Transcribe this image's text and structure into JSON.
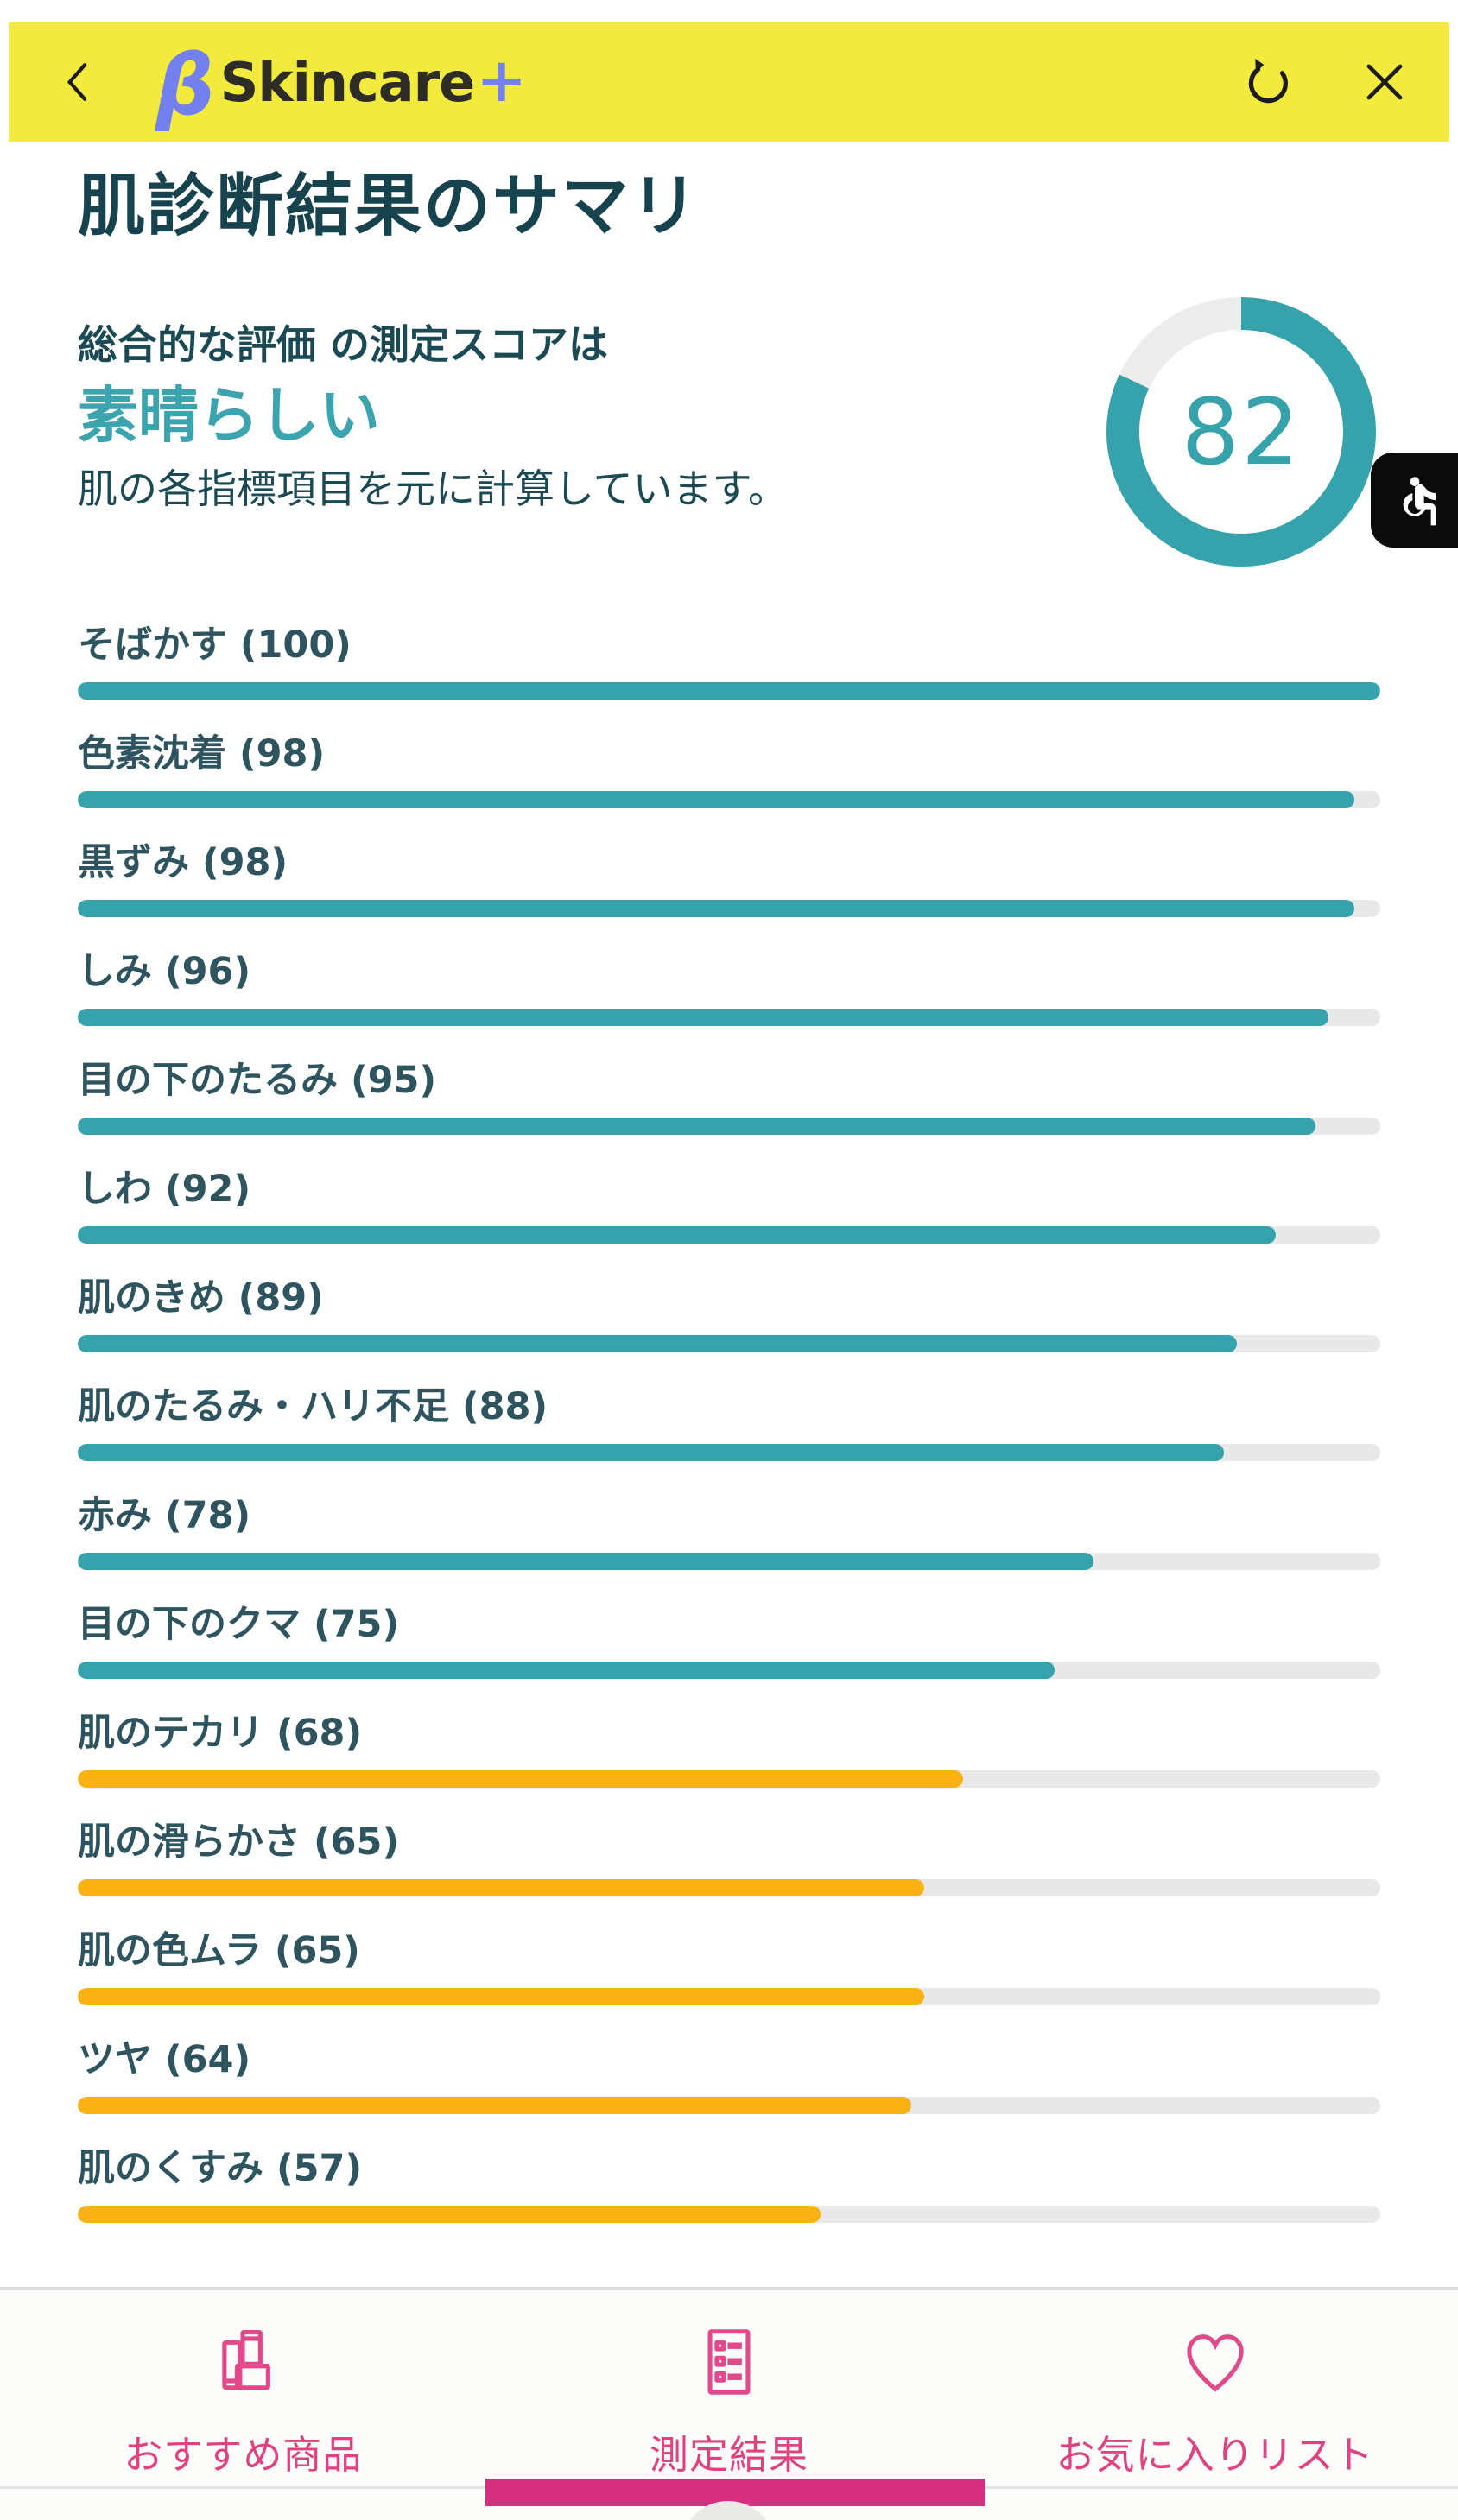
{
  "header": {
    "logo_beta": "β",
    "logo_name": "Skincare",
    "logo_plus": "+"
  },
  "page": {
    "title": "肌診断結果のサマリ"
  },
  "summary": {
    "line1": "総合的な評価 の測定スコアは",
    "rating": "素晴らしい",
    "line2": "肌の各指標項目を元に計算しています。",
    "score": 82
  },
  "chart_data": {
    "type": "bar",
    "orientation": "horizontal",
    "title": "肌診断結果のサマリ",
    "xlim": [
      0,
      100
    ],
    "categories": [
      "そばかす",
      "色素沈着",
      "黒ずみ",
      "しみ",
      "目の下のたるみ",
      "しわ",
      "肌のきめ",
      "肌のたるみ・ハリ不足",
      "赤み",
      "目の下のクマ",
      "肌のテカリ",
      "肌の滑らかさ",
      "肌の色ムラ",
      "ツヤ",
      "肌のくすみ"
    ],
    "values": [
      100,
      98,
      98,
      96,
      95,
      92,
      89,
      88,
      78,
      75,
      68,
      65,
      65,
      64,
      57
    ],
    "overall_score": 82,
    "color_rule": "value >= 70 teal (#36a3ac), value < 70 orange (#f9b211)"
  },
  "metrics": [
    {
      "label": "そばかす",
      "value": 100,
      "level": "high"
    },
    {
      "label": "色素沈着",
      "value": 98,
      "level": "high"
    },
    {
      "label": "黒ずみ",
      "value": 98,
      "level": "high"
    },
    {
      "label": "しみ",
      "value": 96,
      "level": "high"
    },
    {
      "label": "目の下のたるみ",
      "value": 95,
      "level": "high"
    },
    {
      "label": "しわ",
      "value": 92,
      "level": "high"
    },
    {
      "label": "肌のきめ",
      "value": 89,
      "level": "high"
    },
    {
      "label": "肌のたるみ・ハリ不足",
      "value": 88,
      "level": "high"
    },
    {
      "label": "赤み",
      "value": 78,
      "level": "high"
    },
    {
      "label": "目の下のクマ",
      "value": 75,
      "level": "high"
    },
    {
      "label": "肌のテカリ",
      "value": 68,
      "level": "low"
    },
    {
      "label": "肌の滑らかさ",
      "value": 65,
      "level": "low"
    },
    {
      "label": "肌の色ムラ",
      "value": 65,
      "level": "low"
    },
    {
      "label": "ツヤ",
      "value": 64,
      "level": "low"
    },
    {
      "label": "肌のくすみ",
      "value": 57,
      "level": "low"
    }
  ],
  "nav": {
    "items": [
      {
        "label": "おすすめ商品",
        "icon": "cosmetics-icon",
        "active": false
      },
      {
        "label": "測定結果",
        "icon": "results-list-icon",
        "active": true
      },
      {
        "label": "お気に入りリスト",
        "icon": "heart-icon",
        "active": false
      }
    ]
  },
  "colors": {
    "header_yellow": "#f2ea3c",
    "logo_periwinkle": "#7580f0",
    "dark_teal_text": "#17434e",
    "teal_accent": "#36a3ac",
    "orange_accent": "#f9b211",
    "track_gray": "#e8e8e8",
    "ring_track": "#ececec",
    "nav_pink": "#e0417f",
    "indicator_pink": "#d62f7d",
    "a11y_black": "#0b0b0b"
  }
}
